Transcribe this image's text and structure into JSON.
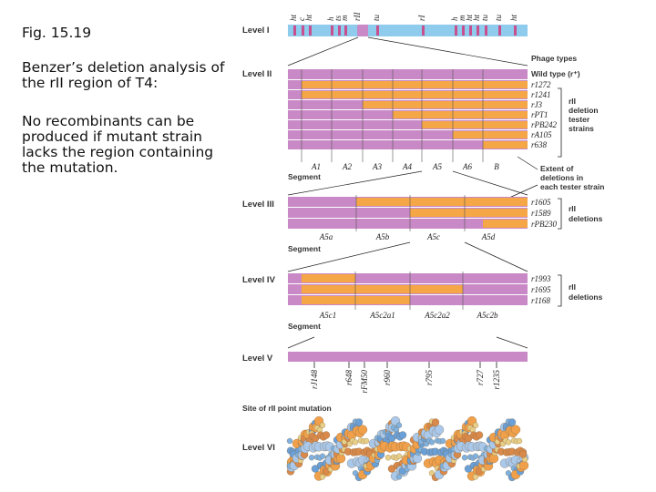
{
  "caption": {
    "title": "Fig. 15.19",
    "p1": "Benzer’s deletion analysis of the rII region of T4:",
    "p2": "No recombinants can be produced if mutant strain lacks the region containing the mutation."
  },
  "colors": {
    "purple": "#c889c6",
    "orange": "#f5a646",
    "blue": "#8ecbec",
    "magenta": "#c8508e"
  },
  "levels": {
    "l1": "Level I",
    "l2": "Level II",
    "l3": "Level III",
    "l4": "Level IV",
    "l5": "Level V",
    "l6": "Level VI"
  },
  "level1_genes": [
    "ht",
    "c",
    "ht",
    "h",
    "ts",
    "m",
    "rII",
    "tu",
    "rI",
    "h",
    "m",
    "ht",
    "ht",
    "tu",
    "tu",
    "ht"
  ],
  "phage_types": "Phage types",
  "wild_type": "Wild type (r⁺)",
  "segment_word": "Segment",
  "level2": {
    "strains": [
      "r1272",
      "r1241",
      "rJ3",
      "rPT1",
      "rPB242",
      "rA105",
      "r638"
    ],
    "segments": [
      "A1",
      "A2",
      "A3",
      "A4",
      "A5",
      "A6",
      "B"
    ],
    "group_label": [
      "rII",
      "deletion",
      "tester",
      "strains"
    ]
  },
  "extent_label": [
    "Extent of",
    "deletions in",
    "each tester strain"
  ],
  "level3": {
    "strains": [
      "r1605",
      "r1589",
      "rPB230"
    ],
    "segments": [
      "A5a",
      "A5b",
      "A5c",
      "A5d"
    ],
    "group_label": [
      "rII",
      "deletions"
    ]
  },
  "level4": {
    "strains": [
      "r1993",
      "r1695",
      "r1168"
    ],
    "segments": [
      "A5c1",
      "A5c2a1",
      "A5c2a2",
      "A5c2b"
    ],
    "group_label": [
      "rII",
      "deletions"
    ]
  },
  "level5": {
    "mutations": [
      "rJ148",
      "r648",
      "rFM50",
      "r960",
      "r795",
      "r727",
      "r1235"
    ],
    "site_label": "Site of rII point mutation"
  }
}
